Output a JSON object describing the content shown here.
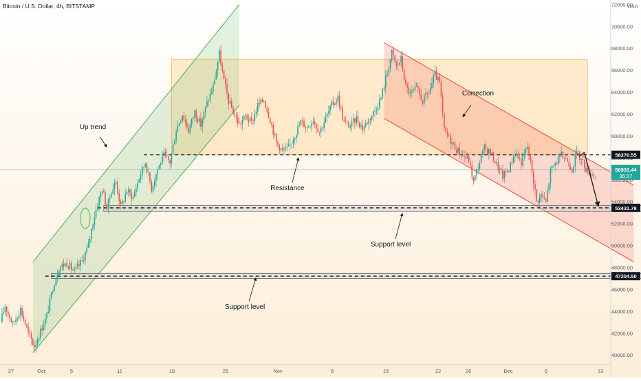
{
  "header": {
    "title": "Bitcoin / U.S. Dollar, 4h, BITSTAMP",
    "currency": "USD"
  },
  "colors": {
    "up": "#26a69a",
    "down": "#ef5350",
    "channel_up": "#4caf50",
    "channel_down": "#f44336",
    "range_box": "#ff9800",
    "bg_top": "#ffffff",
    "bg_bottom": "#fdeed8",
    "text": "#131722",
    "axis_text": "#555a66"
  },
  "chart_data": {
    "type": "candlestick",
    "x_ticks": [
      "27",
      "Oct",
      "5",
      "11",
      "18",
      "25",
      "Nov",
      "8",
      "15",
      "22",
      "26",
      "Dec",
      "6",
      "13"
    ],
    "y_ticks": [
      40000,
      42000,
      44000,
      46000,
      48000,
      50000,
      52000,
      54000,
      56000,
      58000,
      60000,
      62000,
      64000,
      66000,
      68000,
      70000,
      72000
    ],
    "ylim": [
      39200,
      72400
    ],
    "price_path": [
      [
        0,
        43000
      ],
      [
        3,
        44500
      ],
      [
        8,
        42800
      ],
      [
        13,
        44200
      ],
      [
        18,
        42000
      ],
      [
        22,
        40800
      ],
      [
        26,
        42200
      ],
      [
        30,
        43600
      ],
      [
        34,
        46200
      ],
      [
        38,
        48000
      ],
      [
        43,
        48400
      ],
      [
        48,
        47600
      ],
      [
        53,
        48600
      ],
      [
        57,
        50000
      ],
      [
        60,
        52200
      ],
      [
        63,
        53800
      ],
      [
        66,
        55200
      ],
      [
        69,
        53400
      ],
      [
        72,
        55000
      ],
      [
        75,
        55800
      ],
      [
        78,
        53500
      ],
      [
        82,
        55000
      ],
      [
        86,
        54400
      ],
      [
        90,
        56200
      ],
      [
        94,
        57600
      ],
      [
        98,
        55200
      ],
      [
        102,
        57000
      ],
      [
        106,
        58200
      ],
      [
        110,
        57600
      ],
      [
        114,
        60600
      ],
      [
        118,
        62000
      ],
      [
        122,
        60500
      ],
      [
        126,
        62200
      ],
      [
        130,
        61000
      ],
      [
        134,
        63000
      ],
      [
        138,
        64500
      ],
      [
        142,
        67500
      ],
      [
        145,
        65000
      ],
      [
        148,
        63200
      ],
      [
        151,
        62200
      ],
      [
        155,
        61000
      ],
      [
        159,
        61800
      ],
      [
        163,
        61200
      ],
      [
        167,
        62800
      ],
      [
        171,
        63300
      ],
      [
        175,
        61500
      ],
      [
        179,
        59400
      ],
      [
        183,
        58600
      ],
      [
        187,
        58900
      ],
      [
        191,
        60100
      ],
      [
        195,
        61300
      ],
      [
        199,
        60800
      ],
      [
        203,
        61500
      ],
      [
        207,
        60400
      ],
      [
        211,
        61600
      ],
      [
        215,
        62800
      ],
      [
        219,
        63500
      ],
      [
        223,
        61200
      ],
      [
        227,
        60900
      ],
      [
        231,
        61600
      ],
      [
        235,
        60700
      ],
      [
        239,
        61500
      ],
      [
        243,
        62300
      ],
      [
        247,
        63500
      ],
      [
        251,
        65800
      ],
      [
        254,
        67600
      ],
      [
        257,
        66300
      ],
      [
        260,
        67000
      ],
      [
        263,
        64500
      ],
      [
        266,
        63800
      ],
      [
        270,
        64300
      ],
      [
        274,
        63200
      ],
      [
        278,
        64000
      ],
      [
        282,
        65600
      ],
      [
        285,
        64800
      ],
      [
        288,
        60500
      ],
      [
        292,
        59600
      ],
      [
        296,
        58800
      ],
      [
        300,
        58200
      ],
      [
        304,
        57800
      ],
      [
        307,
        55800
      ],
      [
        310,
        57200
      ],
      [
        314,
        58900
      ],
      [
        318,
        58500
      ],
      [
        322,
        57400
      ],
      [
        326,
        56300
      ],
      [
        330,
        57000
      ],
      [
        334,
        58500
      ],
      [
        338,
        57600
      ],
      [
        342,
        59000
      ],
      [
        345,
        56800
      ],
      [
        348,
        54000
      ],
      [
        351,
        54600
      ],
      [
        354,
        53900
      ],
      [
        357,
        56800
      ],
      [
        360,
        57500
      ],
      [
        364,
        58200
      ],
      [
        368,
        57800
      ],
      [
        371,
        57000
      ],
      [
        374,
        58500
      ],
      [
        378,
        57600
      ],
      [
        381,
        56800
      ],
      [
        385,
        56500
      ]
    ],
    "annotations": {
      "up_trend": "Up trend",
      "resistance": "Resistance",
      "correction": "Correction",
      "support_1": "Support level",
      "support_2": "Support level"
    },
    "levels": {
      "resistance": 58270.55,
      "support_1": 53431.78,
      "support_2": 47204.5
    },
    "level_labels": {
      "resistance": "58270.55",
      "support_1": "53431.78",
      "support_2": "47204.50"
    },
    "current_price": {
      "value": 56931.44,
      "label": "56931.44",
      "countdown": "35:37"
    },
    "range_box": {
      "x_from": 110,
      "x_to": 380,
      "y_from": 58270.55,
      "y_to": 67000
    },
    "channel_up": {
      "lower": [
        [
          20,
          40200
        ],
        [
          90,
          52000
        ]
      ],
      "upper": [
        [
          20,
          48500
        ],
        [
          154,
          72000
        ]
      ],
      "x_end_lower": 154,
      "x_end_upper": 154
    },
    "channel_down": {
      "upper": [
        [
          248,
          68500
        ],
        [
          410,
          55500
        ]
      ],
      "lower": [
        [
          248,
          61600
        ],
        [
          410,
          48500
        ]
      ]
    },
    "support_boxes": [
      {
        "x_from": 66,
        "x_to": 423,
        "y_from": 53100,
        "y_to": 53650
      },
      {
        "x_from": 32,
        "x_to": 423,
        "y_from": 47000,
        "y_to": 47450
      }
    ],
    "projection": [
      [
        378,
        58500
      ],
      [
        387,
        53600
      ]
    ],
    "grid": false,
    "legend": "none"
  }
}
